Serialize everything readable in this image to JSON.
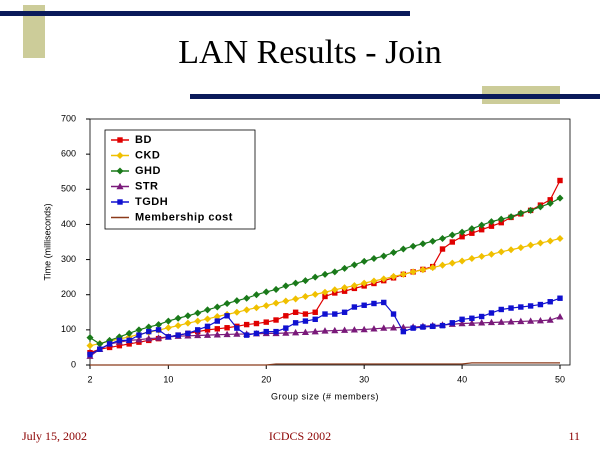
{
  "chart_data": {
    "type": "line",
    "title": "LAN Results - Join",
    "x_label": "Group size (# members)",
    "y_label": "Time (milliseconds)",
    "x": [
      2,
      3,
      4,
      5,
      6,
      7,
      8,
      9,
      10,
      11,
      12,
      13,
      14,
      15,
      16,
      17,
      18,
      19,
      20,
      21,
      22,
      23,
      24,
      25,
      26,
      27,
      28,
      29,
      30,
      31,
      32,
      33,
      34,
      35,
      36,
      37,
      38,
      39,
      40,
      41,
      42,
      43,
      44,
      45,
      46,
      47,
      48,
      49,
      50
    ],
    "xlim": [
      2,
      50
    ],
    "xticks": [
      2,
      10,
      20,
      30,
      40,
      50
    ],
    "ylim": [
      0,
      700
    ],
    "yticks": [
      0,
      100,
      200,
      300,
      400,
      500,
      600,
      700
    ],
    "legend": "upper-left",
    "series": [
      {
        "name": "BD",
        "color": "#e00000",
        "marker": "square",
        "values": [
          35,
          45,
          50,
          55,
          60,
          65,
          70,
          75,
          80,
          85,
          90,
          95,
          100,
          103,
          106,
          110,
          115,
          118,
          122,
          128,
          140,
          150,
          145,
          150,
          195,
          205,
          210,
          218,
          225,
          232,
          240,
          248,
          258,
          265,
          272,
          280,
          330,
          350,
          365,
          375,
          385,
          395,
          405,
          420,
          430,
          440,
          455,
          470,
          525
        ]
      },
      {
        "name": "CKD",
        "color": "#f0c000",
        "marker": "diamond",
        "values": [
          55,
          61,
          68,
          74,
          80,
          87,
          93,
          99,
          106,
          112,
          119,
          125,
          131,
          138,
          144,
          150,
          157,
          163,
          169,
          176,
          182,
          188,
          195,
          201,
          207,
          214,
          220,
          226,
          233,
          239,
          245,
          252,
          258,
          265,
          271,
          277,
          284,
          290,
          296,
          303,
          309,
          315,
          322,
          328,
          334,
          341,
          347,
          353,
          360
        ]
      },
      {
        "name": "GHD",
        "color": "#1a7a1a",
        "marker": "diamond",
        "values": [
          78,
          60,
          70,
          80,
          90,
          100,
          108,
          115,
          125,
          133,
          140,
          148,
          157,
          165,
          175,
          183,
          190,
          200,
          208,
          215,
          225,
          233,
          240,
          250,
          258,
          265,
          275,
          285,
          295,
          303,
          310,
          320,
          330,
          338,
          345,
          352,
          360,
          370,
          378,
          388,
          398,
          408,
          415,
          422,
          432,
          440,
          450,
          460,
          475
        ]
      },
      {
        "name": "STR",
        "color": "#7a1a7a",
        "marker": "triangle",
        "values": [
          25,
          45,
          60,
          65,
          70,
          72,
          75,
          77,
          80,
          82,
          83,
          84,
          85,
          86,
          87,
          88,
          88,
          89,
          90,
          90,
          91,
          92,
          93,
          95,
          97,
          98,
          99,
          100,
          101,
          103,
          105,
          106,
          107,
          108,
          110,
          112,
          114,
          116,
          118,
          119,
          120,
          121,
          122,
          123,
          124,
          125,
          126,
          128,
          137
        ]
      },
      {
        "name": "TGDH",
        "color": "#1010d0",
        "marker": "square",
        "values": [
          30,
          45,
          60,
          70,
          70,
          85,
          95,
          100,
          80,
          85,
          90,
          100,
          110,
          125,
          140,
          105,
          85,
          90,
          95,
          95,
          105,
          120,
          125,
          130,
          145,
          145,
          150,
          165,
          170,
          175,
          178,
          145,
          95,
          105,
          108,
          110,
          112,
          120,
          130,
          133,
          138,
          148,
          158,
          162,
          165,
          168,
          172,
          180,
          190
        ]
      },
      {
        "name": "Membership cost",
        "color": "#8b3a1a",
        "marker": "none",
        "values": [
          0,
          0,
          0,
          0,
          0,
          0,
          0,
          0,
          0,
          0,
          0,
          0,
          0,
          0,
          0,
          0,
          0,
          0,
          0,
          3,
          3,
          3,
          3,
          3,
          3,
          3,
          3,
          3,
          3,
          3,
          3,
          3,
          3,
          3,
          3,
          3,
          3,
          3,
          3,
          6,
          6,
          6,
          6,
          6,
          6,
          6,
          6,
          6,
          6
        ]
      }
    ]
  },
  "footer": {
    "date": "July 15, 2002",
    "venue": "ICDCS 2002",
    "page": "11"
  }
}
